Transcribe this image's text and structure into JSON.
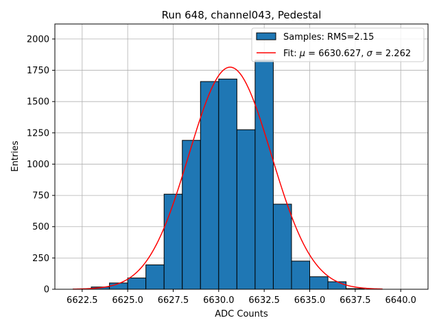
{
  "chart_data": {
    "type": "bar",
    "title": "Run 648, channel043, Pedestal",
    "xlabel": "ADC Counts",
    "ylabel": "Entries",
    "xlim": [
      6621.0,
      6641.5
    ],
    "ylim": [
      0,
      2120
    ],
    "grid": true,
    "x_ticks": [
      6622.5,
      6625.0,
      6627.5,
      6630.0,
      6632.5,
      6635.0,
      6637.5,
      6640.0
    ],
    "x_tick_labels": [
      "6622.5",
      "6625.0",
      "6627.5",
      "6630.0",
      "6632.5",
      "6635.0",
      "6637.5",
      "6640.0"
    ],
    "y_ticks": [
      0,
      250,
      500,
      750,
      1000,
      1250,
      1500,
      1750,
      2000
    ],
    "y_tick_labels": [
      "0",
      "250",
      "500",
      "750",
      "1000",
      "1250",
      "1500",
      "1750",
      "2000"
    ],
    "bin_width": 1,
    "bins": [
      {
        "x0": 6622,
        "value": 2
      },
      {
        "x0": 6623,
        "value": 18
      },
      {
        "x0": 6624,
        "value": 50
      },
      {
        "x0": 6625,
        "value": 90
      },
      {
        "x0": 6626,
        "value": 195
      },
      {
        "x0": 6627,
        "value": 760
      },
      {
        "x0": 6628,
        "value": 1190
      },
      {
        "x0": 6629,
        "value": 1660
      },
      {
        "x0": 6630,
        "value": 1680
      },
      {
        "x0": 6631,
        "value": 1275
      },
      {
        "x0": 6632,
        "value": 1830
      },
      {
        "x0": 6633,
        "value": 680
      },
      {
        "x0": 6634,
        "value": 225
      },
      {
        "x0": 6635,
        "value": 100
      },
      {
        "x0": 6636,
        "value": 60
      },
      {
        "x0": 6637,
        "value": 5
      }
    ],
    "fit": {
      "mu": 6630.627,
      "sigma": 2.262,
      "peak": 1775,
      "x_range": [
        6622.0,
        6639.0
      ]
    },
    "legend": {
      "placement": "top-right",
      "entries": [
        {
          "label": "Samples: RMS=2.15",
          "kind": "patch"
        },
        {
          "label_prefix": "Fit: ",
          "mu_symbol": "μ",
          "mu_part": " = 6630.627, ",
          "sigma_symbol": "σ",
          "sigma_part": " = 2.262",
          "kind": "line"
        }
      ]
    },
    "colors": {
      "bar_fill": "#1f77b4",
      "bar_edge": "#000000",
      "fit_line": "#ff0000",
      "grid": "#b0b0b0"
    }
  }
}
